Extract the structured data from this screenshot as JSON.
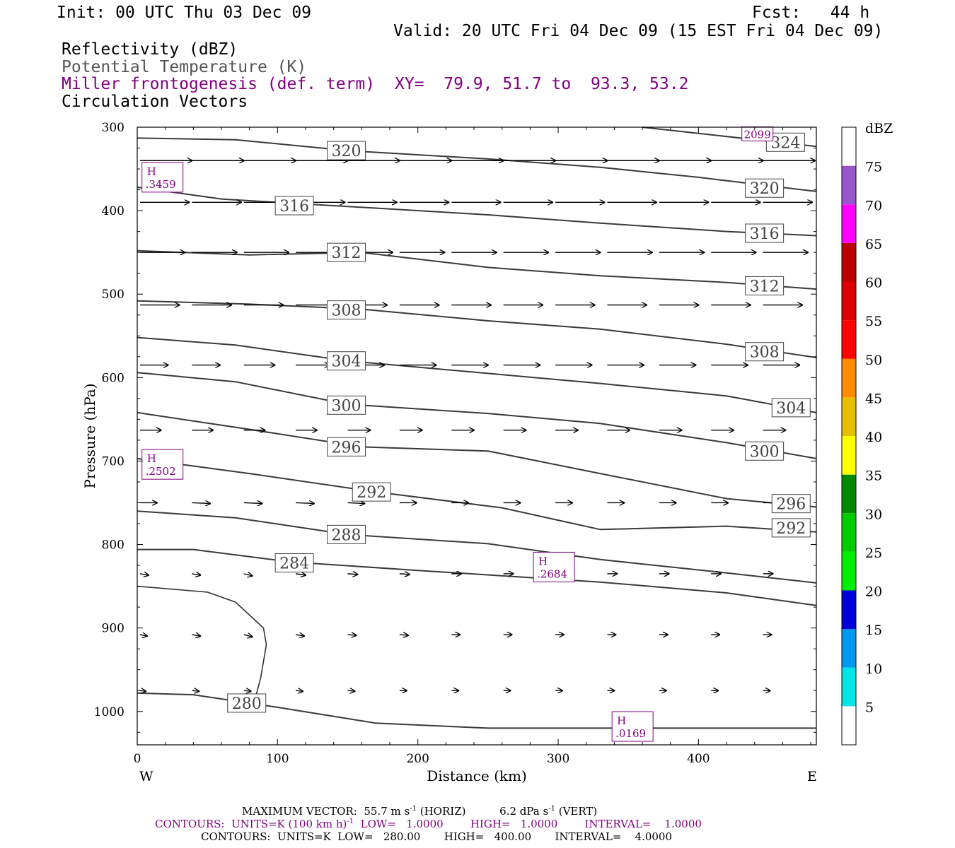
{
  "header": {
    "init": "Init: 00 UTC Thu 03 Dec 09",
    "fcst": "Fcst:   44 h",
    "valid": "Valid: 20 UTC Fri 04 Dec 09 (15 EST Fri 04 Dec 09)",
    "fields": [
      {
        "text": "Reflectivity (dBZ)",
        "color": "#000000"
      },
      {
        "text": "Potential Temperature (K)",
        "color": "#555555"
      },
      {
        "text": "Miller frontogenesis (def. term)",
        "color": "#800080"
      },
      {
        "text": "Circulation Vectors",
        "color": "#000000"
      }
    ],
    "xy": "XY=  79.9, 51.7 to  93.3, 53.2"
  },
  "chart_data": {
    "type": "cross-section",
    "xlabel": "Distance (km)",
    "ylabel": "Pressure (hPa)",
    "xlim": [
      0,
      484
    ],
    "ylim": [
      1040,
      300
    ],
    "x_ticks": [
      0,
      100,
      200,
      300,
      400
    ],
    "y_ticks": [
      300,
      400,
      500,
      600,
      700,
      800,
      900,
      1000
    ],
    "x_end_labels": {
      "left": "W",
      "right": "E"
    },
    "theta_contours": [
      {
        "level": 324,
        "label": "324",
        "points": [
          [
            360,
            300
          ],
          [
            484,
            323
          ]
        ],
        "label_at": [
          462,
          318
        ]
      },
      {
        "level": 320,
        "label": "320",
        "points": [
          [
            0,
            313
          ],
          [
            70,
            315
          ],
          [
            150,
            328
          ],
          [
            250,
            338
          ],
          [
            330,
            348
          ],
          [
            400,
            360
          ],
          [
            484,
            377
          ]
        ],
        "label_at": [
          149,
          328
        ],
        "label_at2": [
          447,
          373
        ]
      },
      {
        "level": 316,
        "label": "316",
        "points": [
          [
            0,
            372
          ],
          [
            60,
            386
          ],
          [
            150,
            395
          ],
          [
            250,
            405
          ],
          [
            330,
            415
          ],
          [
            420,
            425
          ],
          [
            484,
            430
          ]
        ],
        "label_at": [
          112,
          394
        ],
        "label_at2": [
          447,
          427
        ]
      },
      {
        "level": 312,
        "label": "312",
        "points": [
          [
            0,
            448
          ],
          [
            80,
            453
          ],
          [
            160,
            450
          ],
          [
            250,
            468
          ],
          [
            330,
            478
          ],
          [
            420,
            486
          ],
          [
            484,
            494
          ]
        ],
        "label_at": [
          149,
          450
        ],
        "label_at2": [
          447,
          490
        ]
      },
      {
        "level": 308,
        "label": "308",
        "points": [
          [
            0,
            508
          ],
          [
            80,
            512
          ],
          [
            160,
            518
          ],
          [
            250,
            532
          ],
          [
            330,
            542
          ],
          [
            420,
            560
          ],
          [
            484,
            576
          ]
        ],
        "label_at": [
          149,
          519
        ],
        "label_at2": [
          447,
          569
        ]
      },
      {
        "level": 304,
        "label": "304",
        "points": [
          [
            0,
            552
          ],
          [
            70,
            561
          ],
          [
            150,
            580
          ],
          [
            250,
            595
          ],
          [
            330,
            607
          ],
          [
            420,
            622
          ],
          [
            484,
            642
          ]
        ],
        "label_at": [
          149,
          580
        ],
        "label_at2": [
          466,
          636
        ]
      },
      {
        "level": 300,
        "label": "300",
        "points": [
          [
            0,
            594
          ],
          [
            70,
            605
          ],
          [
            150,
            632
          ],
          [
            250,
            643
          ],
          [
            330,
            655
          ],
          [
            420,
            678
          ],
          [
            484,
            697
          ]
        ],
        "label_at": [
          149,
          633
        ],
        "label_at2": [
          447,
          688
        ]
      },
      {
        "level": 296,
        "label": "296",
        "points": [
          [
            0,
            642
          ],
          [
            80,
            662
          ],
          [
            160,
            683
          ],
          [
            250,
            688
          ],
          [
            330,
            715
          ],
          [
            420,
            745
          ],
          [
            484,
            755
          ]
        ],
        "label_at": [
          149,
          683
        ],
        "label_at2": [
          466,
          751
        ]
      },
      {
        "level": 292,
        "label": "292",
        "points": [
          [
            0,
            697
          ],
          [
            80,
            715
          ],
          [
            170,
            737
          ],
          [
            260,
            756
          ],
          [
            330,
            782
          ],
          [
            420,
            778
          ],
          [
            484,
            785
          ]
        ],
        "label_at": [
          167,
          737
        ],
        "label_at2": [
          466,
          780
        ]
      },
      {
        "level": 288,
        "label": "288",
        "points": [
          [
            0,
            760
          ],
          [
            70,
            768
          ],
          [
            150,
            788
          ],
          [
            250,
            799
          ],
          [
            330,
            818
          ],
          [
            420,
            834
          ],
          [
            484,
            846
          ]
        ],
        "label_at": [
          149,
          788
        ]
      },
      {
        "level": 284,
        "label": "284",
        "points": [
          [
            0,
            806
          ],
          [
            40,
            806
          ],
          [
            110,
            821
          ],
          [
            200,
            831
          ],
          [
            330,
            845
          ],
          [
            420,
            858
          ],
          [
            484,
            873
          ]
        ],
        "label_at": [
          112,
          822
        ]
      },
      {
        "level": 280,
        "label": "280",
        "points": [
          [
            0,
            978
          ],
          [
            40,
            980
          ],
          [
            100,
            995
          ],
          [
            170,
            1014
          ],
          [
            250,
            1020
          ],
          [
            484,
            1020
          ]
        ],
        "label_at": [
          78,
          990
        ]
      }
    ],
    "frontogenesis_contours": [
      {
        "label": "",
        "points": [
          [
            0,
            850
          ],
          [
            50,
            857
          ],
          [
            70,
            869
          ],
          [
            90,
            900
          ],
          [
            92,
            920
          ],
          [
            88,
            960
          ],
          [
            84,
            985
          ]
        ]
      }
    ],
    "frontogenesis_maxima": [
      {
        "label": "H",
        "value": ".3459",
        "x": 18,
        "p": 360
      },
      {
        "label": "H",
        "value": ".2502",
        "x": 18,
        "p": 704
      },
      {
        "label": "H",
        "value": ".2684",
        "x": 297,
        "p": 827
      },
      {
        "label": "H",
        "value": ".0169",
        "x": 353,
        "p": 1018
      },
      {
        "label": "",
        "value": "2099",
        "x": 442,
        "p": 308
      }
    ],
    "vector_columns_km": [
      2,
      39,
      76,
      113,
      150,
      187,
      224,
      261,
      298,
      335,
      372,
      409,
      446
    ],
    "vector_rows": [
      {
        "p": 340,
        "u": [
          37,
          37,
          37,
          37,
          37,
          37,
          37,
          37,
          37,
          37,
          37,
          37,
          37
        ],
        "v": [
          0,
          0,
          0,
          0,
          0,
          0,
          0,
          0,
          0,
          0,
          0,
          0,
          0
        ]
      },
      {
        "p": 390,
        "u": [
          35,
          35,
          35,
          35,
          35,
          35,
          35,
          35,
          35,
          35,
          35,
          35,
          35
        ],
        "v": [
          0,
          0,
          0,
          0,
          0,
          0,
          0,
          0,
          0,
          0,
          0,
          0,
          0
        ]
      },
      {
        "p": 450,
        "u": [
          32,
          32,
          32,
          32,
          32,
          32,
          32,
          32,
          32,
          32,
          32,
          32,
          32
        ],
        "v": [
          0,
          0,
          0,
          0,
          0,
          0,
          0,
          0,
          0,
          0,
          0,
          0,
          0
        ]
      },
      {
        "p": 513,
        "u": [
          28,
          28,
          28,
          28,
          28,
          28,
          28,
          28,
          28,
          28,
          28,
          28,
          28
        ],
        "v": [
          0,
          0,
          0,
          0,
          0,
          0,
          0,
          0,
          0,
          0,
          0,
          0,
          0
        ]
      },
      {
        "p": 585,
        "u": [
          20,
          20,
          22,
          24,
          26,
          26,
          26,
          26,
          26,
          26,
          26,
          26,
          26
        ],
        "v": [
          0,
          0,
          0,
          0,
          0,
          0,
          0,
          0,
          0,
          0,
          0,
          0,
          0
        ]
      },
      {
        "p": 663,
        "u": [
          15,
          15,
          15,
          15,
          16,
          16,
          16,
          16,
          16,
          16,
          16,
          16,
          16
        ],
        "v": [
          0,
          0,
          0,
          0,
          0,
          0,
          0,
          0,
          0,
          0,
          0,
          0,
          0
        ]
      },
      {
        "p": 750,
        "u": [
          12,
          13,
          13,
          13,
          12,
          12,
          12,
          12,
          12,
          12,
          12,
          12,
          12
        ],
        "v": [
          0,
          -1,
          -1,
          -1,
          -1,
          0,
          0,
          0,
          0,
          0,
          0,
          0,
          0
        ]
      },
      {
        "p": 835,
        "u": [
          6,
          6,
          6,
          7,
          7,
          7,
          7,
          7,
          7,
          7,
          7,
          7,
          7
        ],
        "v": [
          -2,
          -2,
          -3,
          -2,
          -1,
          -1,
          0,
          0,
          0,
          0,
          0,
          0,
          0
        ]
      },
      {
        "p": 908,
        "u": [
          5,
          6,
          6,
          6,
          6,
          6,
          6,
          6,
          6,
          6,
          6,
          6,
          6
        ],
        "v": [
          -2,
          -2,
          -3,
          -2,
          -1,
          -1,
          0,
          0,
          0,
          0,
          0,
          0,
          0
        ]
      },
      {
        "p": 975,
        "u": [
          4,
          5,
          5,
          5,
          5,
          5,
          5,
          5,
          5,
          5,
          5,
          5,
          5
        ],
        "v": [
          -1,
          -1,
          -1,
          -1,
          -1,
          0,
          0,
          0,
          0,
          0,
          0,
          0,
          0
        ]
      }
    ],
    "colorbar": {
      "title": "dBZ",
      "levels": [
        5,
        10,
        15,
        20,
        25,
        30,
        35,
        40,
        45,
        50,
        55,
        60,
        65,
        70,
        75
      ],
      "colors": [
        "#ffffff",
        "#00e5e5",
        "#0099ee",
        "#0000dd",
        "#00ee00",
        "#00cc00",
        "#008800",
        "#ffff00",
        "#e5bf00",
        "#ff8c00",
        "#ff0000",
        "#dd0000",
        "#bb0000",
        "#ff00ff",
        "#9955cc",
        "#ffffff"
      ]
    }
  },
  "footer": {
    "max_vector_prefix": "MAXIMUM VECTOR:  55.7 m s",
    "max_vector_exp1": "-1",
    "max_vector_mid": " (HORIZ)          6.2 dPa s",
    "max_vector_exp2": "-1",
    "max_vector_suffix": " (VERT)",
    "contours1_prefix": "CONTOURS:  UNITS=K (100 km h)",
    "contours1_exp": "-1",
    "contours1_suffix": "  LOW=   1.0000        HIGH=   1.0000        INTERVAL=    1.0000",
    "contours2": "CONTOURS:  UNITS=K  LOW=   280.00       HIGH=   400.00       INTERVAL=    4.0000"
  }
}
